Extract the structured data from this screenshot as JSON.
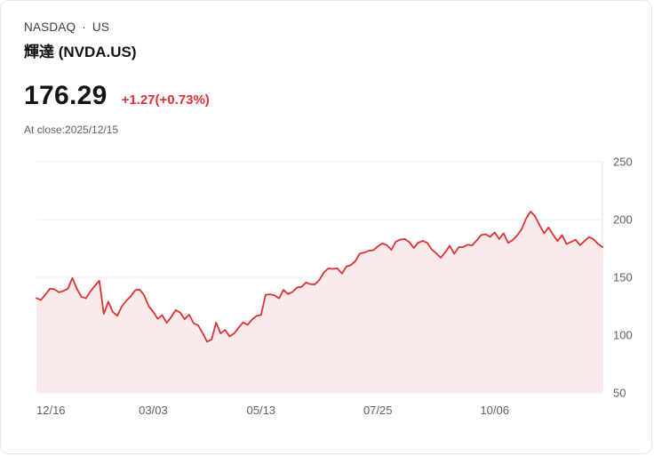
{
  "header": {
    "exchange": "NASDAQ",
    "separator": "·",
    "region": "US",
    "title": "輝達 (NVDA.US)"
  },
  "quote": {
    "price": "176.29",
    "change": "+1.27(+0.73%)",
    "as_of": "At close:2025/12/15"
  },
  "colors": {
    "line": "#dc3232",
    "area_fill": "#fbeaea",
    "change_text": "#e03131",
    "grid": "#ececec",
    "axis_line": "#dcdcdc",
    "tick_text": "#5f5f5f"
  },
  "chart_data": {
    "type": "line",
    "title": "NVDA.US 1-year price history",
    "xlabel": "",
    "ylabel": "",
    "ylim": [
      50,
      250
    ],
    "y_ticks": [
      250,
      200,
      150,
      100,
      50
    ],
    "y_axis_position": "right",
    "grid": "horizontal",
    "legend": false,
    "area_fill": true,
    "x_tick_labels": [
      "12/16",
      "03/03",
      "05/13",
      "07/25",
      "10/06"
    ],
    "x_tick_indices": [
      0,
      26,
      50,
      76,
      102
    ],
    "series": [
      {
        "name": "NVDA.US",
        "values": [
          132.0,
          130.4,
          135.0,
          140.2,
          139.7,
          137.0,
          138.3,
          140.1,
          149.4,
          140.1,
          133.2,
          131.8,
          137.7,
          142.6,
          147.1,
          118.4,
          128.99,
          120.1,
          116.7,
          124.8,
          129.8,
          133.6,
          138.9,
          139.4,
          134.4,
          124.9,
          120.2,
          114.1,
          117.3,
          110.6,
          115.7,
          121.7,
          119.5,
          113.8,
          117.7,
          110.2,
          108.4,
          101.8,
          94.3,
          96.3,
          110.9,
          101.5,
          104.5,
          98.9,
          101.4,
          106.4,
          111.0,
          108.9,
          113.5,
          116.6,
          117.4,
          134.8,
          135.3,
          134.4,
          131.8,
          139.2,
          135.5,
          137.4,
          141.2,
          141.7,
          145.5,
          144.1,
          143.9,
          147.9,
          154.3,
          157.8,
          157.3,
          157.8,
          153.3,
          159.3,
          160.6,
          164.1,
          170.7,
          171.4,
          173.0,
          173.5,
          176.8,
          179.3,
          177.9,
          173.7,
          180.8,
          182.7,
          183.2,
          180.5,
          175.4,
          180.0,
          181.6,
          179.8,
          174.2,
          170.8,
          167.0,
          171.7,
          177.3,
          170.3,
          176.1,
          176.2,
          178.2,
          177.7,
          181.9,
          186.6,
          187.3,
          185.0,
          188.9,
          183.2,
          188.1,
          179.8,
          182.2,
          186.3,
          191.5,
          201.0,
          207.0,
          202.8,
          195.2,
          188.1,
          193.2,
          186.9,
          181.4,
          186.6,
          178.9,
          180.6,
          182.6,
          177.8,
          181.4,
          184.9,
          183.0,
          178.9,
          176.29
        ]
      }
    ]
  }
}
